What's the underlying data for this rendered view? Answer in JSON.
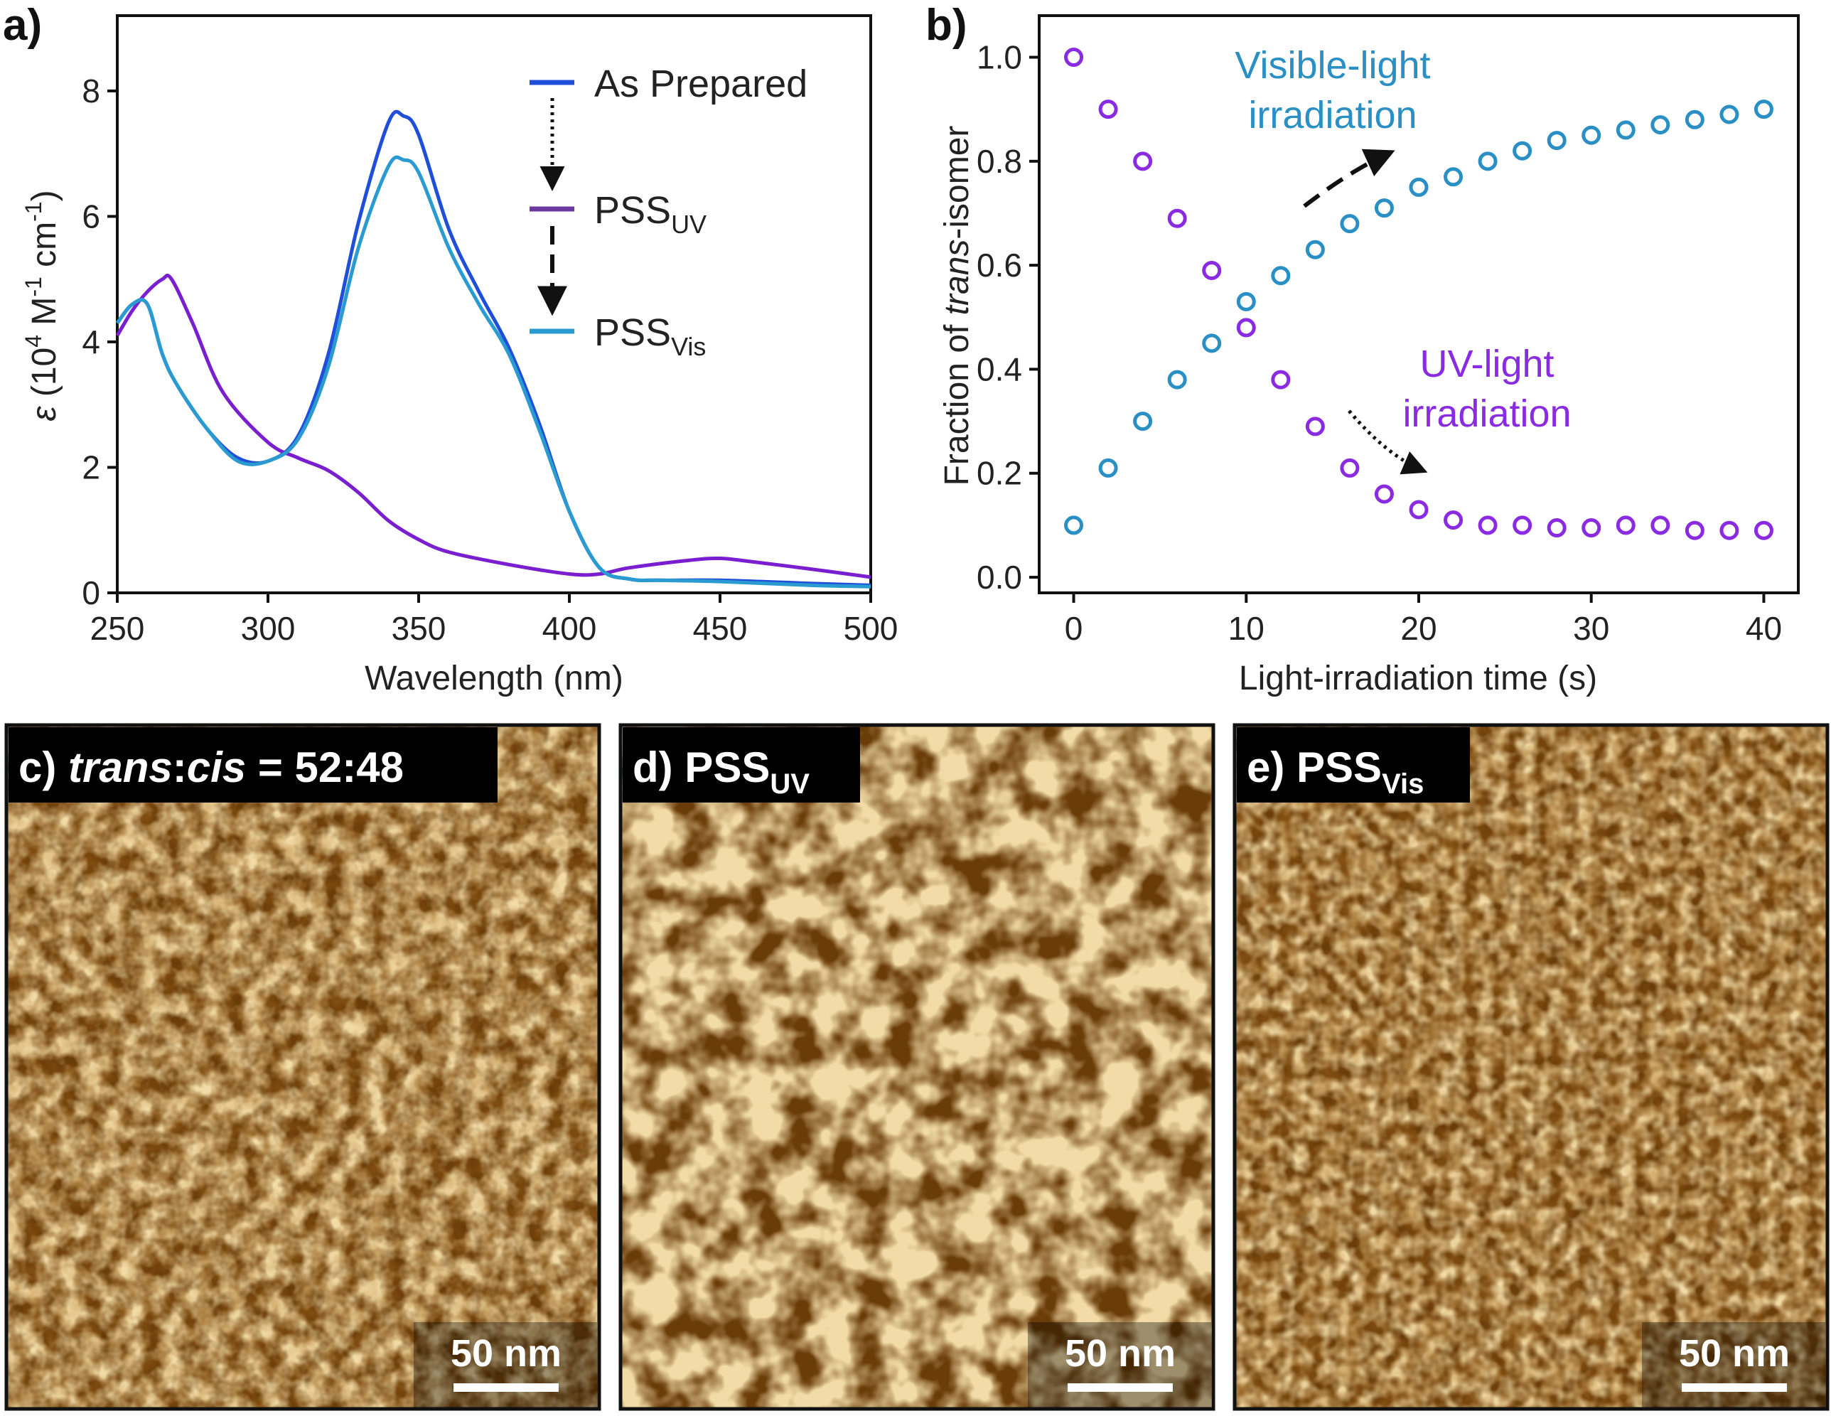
{
  "panels": {
    "a": "a)",
    "b": "b)",
    "c_prefix": "c) ",
    "c_trans": "trans",
    "c_colon": ":",
    "c_cis": "cis",
    "c_ratio": " = 52:48",
    "d_main": "d) PSS",
    "d_sub": "UV",
    "e_main": "e) PSS",
    "e_sub": "Vis"
  },
  "scale_bar_label": "50 nm",
  "colors": {
    "as_prepared": "#1f4fd8",
    "pss_uv": "#7a1fcf",
    "pss_vis": "#2a9bd0",
    "vis_marker": "#2a8fc4",
    "uv_marker": "#8a2be2",
    "afm_dark": "#6a3c08",
    "afm_mid": "#a86e24",
    "afm_light": "#f2dba6"
  },
  "chart_data": [
    {
      "type": "line",
      "panel": "a",
      "xlabel": "Wavelength (nm)",
      "ylabel_parts": {
        "eps": "ε",
        "open": " (10",
        "exp4": "4",
        "m": " M",
        "exp_m1a": "-1",
        "cm": " cm",
        "exp_m1b": "-1",
        "close": ")"
      },
      "xlim": [
        250,
        500
      ],
      "ylim": [
        0,
        9.2
      ],
      "xticks": [
        "250",
        "300",
        "350",
        "400",
        "450",
        "500"
      ],
      "yticks": [
        "0",
        "2",
        "4",
        "6",
        "8"
      ],
      "legend": {
        "as_prepared": "As Prepared",
        "pss_main": "PSS",
        "pss_uv_sub": "UV",
        "pss_vis_sub": "Vis"
      },
      "series": [
        {
          "name": "As Prepared",
          "x": [
            250,
            255,
            260,
            265,
            270,
            280,
            290,
            300,
            310,
            320,
            330,
            340,
            345,
            350,
            360,
            370,
            380,
            390,
            400,
            410,
            420,
            430,
            450,
            480,
            500
          ],
          "y": [
            4.3,
            4.6,
            4.6,
            3.8,
            3.3,
            2.6,
            2.15,
            2.1,
            2.5,
            3.8,
            5.9,
            7.5,
            7.6,
            7.3,
            5.8,
            4.8,
            3.9,
            2.7,
            1.3,
            0.4,
            0.22,
            0.2,
            0.2,
            0.15,
            0.12
          ]
        },
        {
          "name": "PSSUV",
          "x": [
            250,
            255,
            260,
            265,
            268,
            275,
            285,
            300,
            310,
            320,
            330,
            340,
            350,
            360,
            380,
            400,
            410,
            420,
            440,
            450,
            460,
            480,
            500
          ],
          "y": [
            4.1,
            4.5,
            4.8,
            5.0,
            5.0,
            4.3,
            3.2,
            2.4,
            2.15,
            1.95,
            1.6,
            1.15,
            0.85,
            0.65,
            0.45,
            0.3,
            0.3,
            0.4,
            0.52,
            0.55,
            0.5,
            0.38,
            0.25
          ]
        },
        {
          "name": "PSSVis",
          "x": [
            250,
            255,
            260,
            265,
            270,
            280,
            290,
            300,
            310,
            320,
            330,
            340,
            345,
            350,
            360,
            370,
            380,
            390,
            400,
            410,
            420,
            430,
            450,
            480,
            500
          ],
          "y": [
            4.3,
            4.6,
            4.6,
            3.8,
            3.3,
            2.6,
            2.1,
            2.1,
            2.45,
            3.6,
            5.5,
            6.8,
            6.9,
            6.7,
            5.5,
            4.6,
            3.8,
            2.6,
            1.3,
            0.4,
            0.22,
            0.2,
            0.18,
            0.12,
            0.1
          ]
        }
      ]
    },
    {
      "type": "scatter",
      "panel": "b",
      "xlabel": "Light-irradiation time (s)",
      "ylabel_parts": {
        "pre": "Fraction of ",
        "ital": "trans",
        "post": "-isomer"
      },
      "xlim": [
        -2,
        42
      ],
      "ylim": [
        -0.03,
        1.08
      ],
      "xticks": [
        "0",
        "10",
        "20",
        "30",
        "40"
      ],
      "yticks": [
        "0.0",
        "0.2",
        "0.4",
        "0.6",
        "0.8",
        "1.0"
      ],
      "annotations": {
        "vis_line1": "Visible-light",
        "vis_line2": "irradiation",
        "uv_line1": "UV-light",
        "uv_line2": "irradiation"
      },
      "series": [
        {
          "name": "Visible-light irradiation",
          "x": [
            0,
            2,
            4,
            6,
            8,
            10,
            12,
            14,
            16,
            18,
            20,
            22,
            24,
            26,
            28,
            30,
            32,
            34,
            36,
            38,
            40
          ],
          "y": [
            0.1,
            0.21,
            0.3,
            0.38,
            0.45,
            0.53,
            0.58,
            0.63,
            0.68,
            0.71,
            0.75,
            0.77,
            0.8,
            0.82,
            0.84,
            0.85,
            0.86,
            0.87,
            0.88,
            0.89,
            0.9
          ]
        },
        {
          "name": "UV-light irradiation",
          "x": [
            0,
            2,
            4,
            6,
            8,
            10,
            12,
            14,
            16,
            18,
            20,
            22,
            24,
            26,
            28,
            30,
            32,
            34,
            36,
            38,
            40
          ],
          "y": [
            1.0,
            0.9,
            0.8,
            0.69,
            0.59,
            0.48,
            0.38,
            0.29,
            0.21,
            0.16,
            0.13,
            0.11,
            0.1,
            0.1,
            0.095,
            0.095,
            0.1,
            0.1,
            0.09,
            0.09,
            0.09
          ]
        }
      ]
    }
  ]
}
